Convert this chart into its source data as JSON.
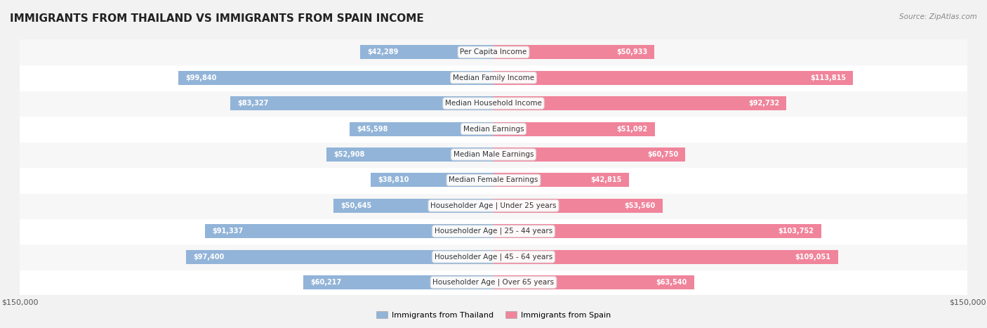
{
  "title": "IMMIGRANTS FROM THAILAND VS IMMIGRANTS FROM SPAIN INCOME",
  "source": "Source: ZipAtlas.com",
  "categories": [
    "Per Capita Income",
    "Median Family Income",
    "Median Household Income",
    "Median Earnings",
    "Median Male Earnings",
    "Median Female Earnings",
    "Householder Age | Under 25 years",
    "Householder Age | 25 - 44 years",
    "Householder Age | 45 - 64 years",
    "Householder Age | Over 65 years"
  ],
  "thailand_values": [
    42289,
    99840,
    83327,
    45598,
    52908,
    38810,
    50645,
    91337,
    97400,
    60217
  ],
  "spain_values": [
    50933,
    113815,
    92732,
    51092,
    60750,
    42815,
    53560,
    103752,
    109051,
    63540
  ],
  "thailand_labels": [
    "$42,289",
    "$99,840",
    "$83,327",
    "$45,598",
    "$52,908",
    "$38,810",
    "$50,645",
    "$91,337",
    "$97,400",
    "$60,217"
  ],
  "spain_labels": [
    "$50,933",
    "$113,815",
    "$92,732",
    "$51,092",
    "$60,750",
    "$42,815",
    "$53,560",
    "$103,752",
    "$109,051",
    "$63,540"
  ],
  "max_value": 150000,
  "thailand_color": "#92b4d8",
  "spain_color": "#f0849b",
  "thailand_color_dark": "#6a9ec8",
  "spain_color_dark": "#e8607a",
  "bg_color": "#f2f2f2",
  "row_bg_color": "#ffffff",
  "legend_thailand": "Immigrants from Thailand",
  "legend_spain": "Immigrants from Spain",
  "bar_height": 0.55
}
